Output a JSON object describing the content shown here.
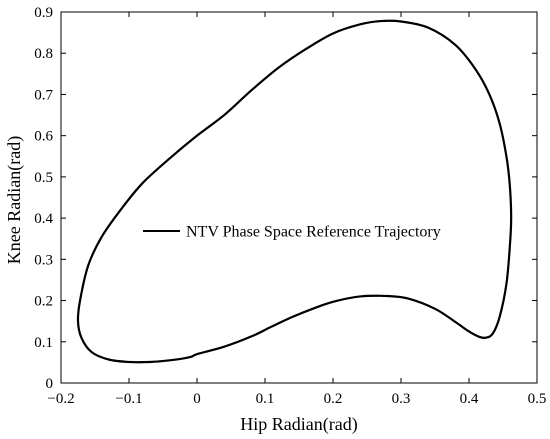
{
  "chart_data": {
    "type": "line",
    "title": "",
    "xlabel": "Hip Radian(rad)",
    "ylabel": "Knee Radian(rad)",
    "xlim": [
      -0.2,
      0.5
    ],
    "ylim": [
      0,
      0.9
    ],
    "xticks": [
      -0.2,
      -0.1,
      0,
      0.1,
      0.2,
      0.3,
      0.4,
      0.5
    ],
    "yticks": [
      0,
      0.1,
      0.2,
      0.3,
      0.4,
      0.5,
      0.6,
      0.7,
      0.8,
      0.9
    ],
    "xtick_labels": [
      "−0.2",
      "−0.1",
      "0",
      "0.1",
      "0.2",
      "0.3",
      "0.4",
      "0.5"
    ],
    "ytick_labels": [
      "0",
      "0.1",
      "0.2",
      "0.3",
      "0.4",
      "0.5",
      "0.6",
      "0.7",
      "0.8",
      "0.9"
    ],
    "grid": false,
    "legend_position": "center",
    "series": [
      {
        "name": "NTV Phase Space Reference Trajectory",
        "color": "#000000",
        "x": [
          0.0,
          0.04,
          0.08,
          0.11,
          0.14,
          0.17,
          0.2,
          0.24,
          0.28,
          0.31,
          0.35,
          0.38,
          0.4,
          0.415,
          0.425,
          0.435,
          0.445,
          0.455,
          0.46,
          0.462,
          0.46,
          0.455,
          0.445,
          0.43,
          0.41,
          0.38,
          0.34,
          0.3,
          0.27,
          0.24,
          0.2,
          0.16,
          0.12,
          0.08,
          0.04,
          0.0,
          -0.04,
          -0.08,
          -0.11,
          -0.14,
          -0.16,
          -0.172,
          -0.175,
          -0.17,
          -0.155,
          -0.13,
          -0.1,
          -0.07,
          -0.04,
          -0.01,
          0.0
        ],
        "y": [
          0.07,
          0.088,
          0.113,
          0.137,
          0.16,
          0.18,
          0.197,
          0.21,
          0.211,
          0.205,
          0.18,
          0.148,
          0.125,
          0.112,
          0.11,
          0.12,
          0.16,
          0.24,
          0.33,
          0.4,
          0.48,
          0.55,
          0.63,
          0.7,
          0.76,
          0.82,
          0.862,
          0.877,
          0.878,
          0.87,
          0.848,
          0.81,
          0.765,
          0.71,
          0.65,
          0.6,
          0.545,
          0.485,
          0.425,
          0.355,
          0.285,
          0.2,
          0.15,
          0.11,
          0.075,
          0.057,
          0.051,
          0.051,
          0.055,
          0.063,
          0.07
        ]
      }
    ]
  }
}
